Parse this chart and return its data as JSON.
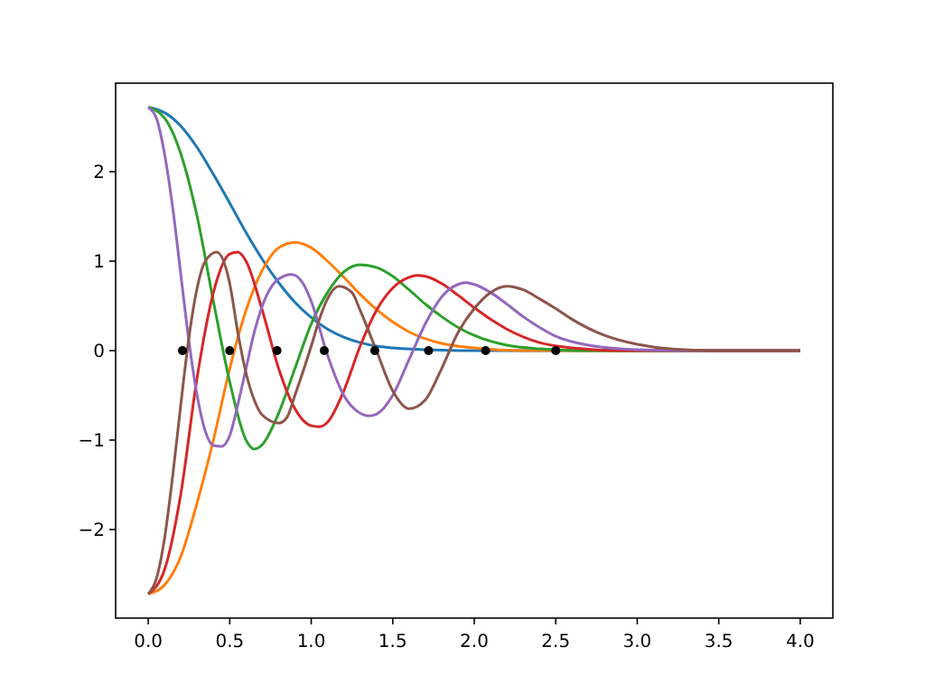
{
  "chart_data": {
    "type": "line",
    "xlim": [
      -0.2,
      4.2
    ],
    "ylim": [
      -2.99,
      2.99
    ],
    "xticks": [
      {
        "value": 0,
        "label": "0.0"
      },
      {
        "value": 0.5,
        "label": "0.5"
      },
      {
        "value": 1,
        "label": "1.0"
      },
      {
        "value": 1.5,
        "label": "1.5"
      },
      {
        "value": 2,
        "label": "2.0"
      },
      {
        "value": 2.5,
        "label": "2.5"
      },
      {
        "value": 3,
        "label": "3.0"
      },
      {
        "value": 3.5,
        "label": "3.5"
      },
      {
        "value": 4,
        "label": "4.0"
      }
    ],
    "yticks": [
      {
        "value": -2,
        "label": "−2"
      },
      {
        "value": -1,
        "label": "−1"
      },
      0,
      1,
      2
    ],
    "series": [
      {
        "color": "#1f77b4",
        "x": [
          0,
          0.1,
          0.2,
          0.3,
          0.4,
          0.5,
          0.6,
          0.7,
          0.8,
          0.9,
          1.0,
          1.1,
          1.2,
          1.3,
          1.4,
          1.5,
          1.7,
          2.0,
          4.0
        ],
        "values": [
          2.72,
          2.66,
          2.51,
          2.27,
          1.97,
          1.65,
          1.32,
          1.02,
          0.76,
          0.54,
          0.37,
          0.24,
          0.15,
          0.09,
          0.05,
          0.03,
          0.01,
          0,
          0
        ]
      },
      {
        "color": "#ff7f0e",
        "x": [
          0,
          0.1,
          0.2,
          0.3,
          0.4,
          0.5,
          0.6,
          0.7,
          0.8,
          0.9,
          1.0,
          1.1,
          1.2,
          1.3,
          1.4,
          1.5,
          1.6,
          1.8,
          2.0,
          2.3,
          4.0
        ],
        "values": [
          -2.72,
          -2.62,
          -2.3,
          -1.7,
          -1.0,
          -0.2,
          0.45,
          0.9,
          1.15,
          1.21,
          1.15,
          1.0,
          0.82,
          0.63,
          0.46,
          0.32,
          0.21,
          0.08,
          0.03,
          0,
          0
        ]
      },
      {
        "color": "#2ca02c",
        "x": [
          0,
          0.1,
          0.2,
          0.3,
          0.4,
          0.5,
          0.6,
          0.65,
          0.7,
          0.8,
          0.9,
          1.0,
          1.1,
          1.2,
          1.3,
          1.4,
          1.5,
          1.6,
          1.7,
          1.8,
          1.9,
          2.0,
          2.2,
          2.4,
          2.7,
          4.0
        ],
        "values": [
          2.72,
          2.6,
          2.2,
          1.5,
          0.55,
          -0.35,
          -1.0,
          -1.1,
          -1.05,
          -0.7,
          -0.2,
          0.3,
          0.65,
          0.88,
          0.96,
          0.93,
          0.83,
          0.68,
          0.52,
          0.38,
          0.26,
          0.17,
          0.06,
          0.02,
          0,
          0
        ]
      },
      {
        "color": "#d62728",
        "x": [
          0,
          0.1,
          0.2,
          0.3,
          0.4,
          0.5,
          0.55,
          0.6,
          0.7,
          0.8,
          0.9,
          1.0,
          1.05,
          1.1,
          1.2,
          1.3,
          1.4,
          1.5,
          1.6,
          1.65,
          1.7,
          1.8,
          1.9,
          2.0,
          2.1,
          2.2,
          2.4,
          2.6,
          2.9,
          4.0
        ],
        "values": [
          -2.72,
          -2.45,
          -1.6,
          -0.3,
          0.65,
          1.08,
          1.1,
          1.0,
          0.45,
          -0.2,
          -0.65,
          -0.84,
          -0.85,
          -0.8,
          -0.45,
          0.05,
          0.45,
          0.7,
          0.82,
          0.84,
          0.83,
          0.75,
          0.62,
          0.48,
          0.35,
          0.24,
          0.09,
          0.03,
          0,
          0
        ]
      },
      {
        "color": "#9467bd",
        "x": [
          0,
          0.05,
          0.1,
          0.15,
          0.2,
          0.25,
          0.3,
          0.35,
          0.4,
          0.45,
          0.5,
          0.55,
          0.6,
          0.65,
          0.7,
          0.8,
          0.88,
          0.95,
          1.0,
          1.1,
          1.2,
          1.3,
          1.35,
          1.4,
          1.5,
          1.6,
          1.7,
          1.8,
          1.9,
          1.95,
          2.0,
          2.1,
          2.2,
          2.3,
          2.4,
          2.5,
          2.7,
          3.0,
          3.3,
          4.0
        ],
        "values": [
          2.72,
          2.6,
          2.2,
          1.6,
          0.85,
          0.1,
          -0.5,
          -0.9,
          -1.06,
          -1.07,
          -0.95,
          -0.6,
          -0.2,
          0.2,
          0.5,
          0.8,
          0.85,
          0.75,
          0.55,
          -0.05,
          -0.5,
          -0.7,
          -0.73,
          -0.71,
          -0.5,
          -0.1,
          0.3,
          0.6,
          0.74,
          0.76,
          0.74,
          0.65,
          0.52,
          0.38,
          0.26,
          0.16,
          0.06,
          0.01,
          0,
          0
        ]
      },
      {
        "color": "#8c564b",
        "x": [
          0,
          0.05,
          0.1,
          0.15,
          0.2,
          0.25,
          0.3,
          0.35,
          0.42,
          0.5,
          0.55,
          0.6,
          0.65,
          0.7,
          0.8,
          0.85,
          0.9,
          1.0,
          1.05,
          1.1,
          1.17,
          1.25,
          1.3,
          1.4,
          1.5,
          1.6,
          1.7,
          1.8,
          1.9,
          2.0,
          2.1,
          2.2,
          2.3,
          2.4,
          2.5,
          2.6,
          2.8,
          3.0,
          3.2,
          3.5,
          4.0
        ],
        "values": [
          -2.72,
          -2.55,
          -2.1,
          -1.4,
          -0.6,
          0.15,
          0.7,
          1.0,
          1.1,
          0.75,
          0.2,
          -0.25,
          -0.55,
          -0.72,
          -0.81,
          -0.75,
          -0.5,
          0.05,
          0.35,
          0.58,
          0.72,
          0.65,
          0.45,
          0,
          -0.45,
          -0.65,
          -0.55,
          -0.2,
          0.2,
          0.47,
          0.65,
          0.72,
          0.68,
          0.58,
          0.47,
          0.35,
          0.17,
          0.07,
          0.02,
          0,
          0
        ]
      },
      {
        "type": "scatter",
        "marker": "circle",
        "color": "#000000",
        "x": [
          0.21,
          0.5,
          0.79,
          1.08,
          1.39,
          1.72,
          2.07,
          2.5
        ],
        "values": [
          0,
          0,
          0,
          0,
          0,
          0,
          0,
          0
        ]
      }
    ]
  }
}
